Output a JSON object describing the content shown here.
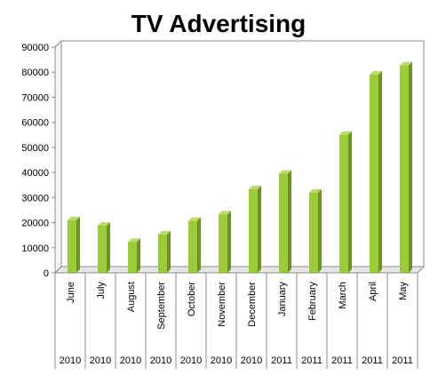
{
  "chart_data": {
    "type": "bar",
    "title": "TV Advertising",
    "xlabel": "",
    "ylabel": "",
    "ylim": [
      0,
      90000
    ],
    "yticks": [
      "0",
      "10000",
      "20000",
      "30000",
      "40000",
      "50000",
      "60000",
      "70000",
      "80000",
      "90000"
    ],
    "categories": [
      "June",
      "July",
      "August",
      "September",
      "October",
      "November",
      "December",
      "January",
      "February",
      "March",
      "April",
      "May"
    ],
    "years": [
      "2010",
      "2010",
      "2010",
      "2010",
      "2010",
      "2010",
      "2010",
      "2011",
      "2011",
      "2011",
      "2011",
      "2011"
    ],
    "values": [
      21000,
      18800,
      12300,
      15300,
      20700,
      23300,
      33300,
      39500,
      32000,
      55000,
      79000,
      82700
    ],
    "grid": false,
    "legend": "none",
    "colors": {
      "bar_front": "#9BCB3B",
      "bar_side": "#6E9324",
      "bar_top": "#B8DE64",
      "wall": "#ffffff",
      "floor": "#e6e6e6",
      "axis": "#8c8c8c"
    }
  }
}
